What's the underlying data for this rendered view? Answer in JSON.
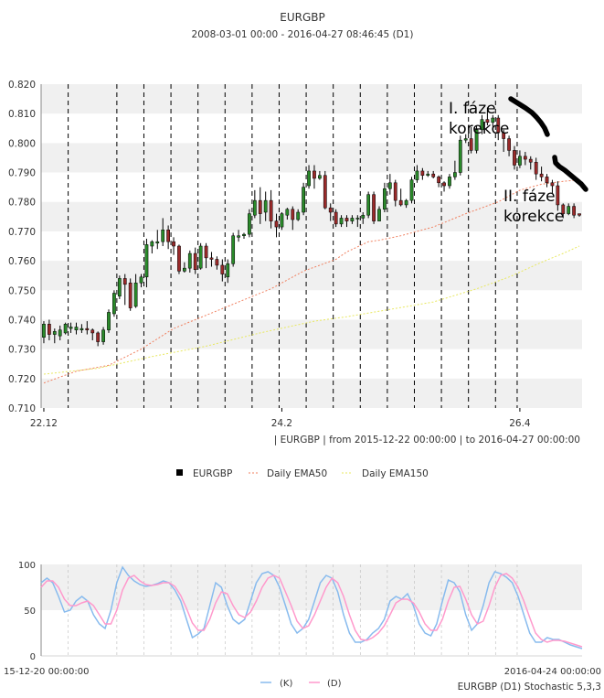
{
  "chart_data": [
    {
      "type": "candlestick",
      "title": "EURGBP",
      "subtitle": "2008-03-01 00:00 - 2016-04-27 08:46:45 (D1)",
      "range_caption": "| EURGBP | from 2015-12-22 00:00:00 | to 2016-04-27 00:00:00",
      "ylim": [
        0.71,
        0.82
      ],
      "y_ticks": [
        "0.710",
        "0.720",
        "0.730",
        "0.740",
        "0.750",
        "0.760",
        "0.770",
        "0.780",
        "0.790",
        "0.800",
        "0.810",
        "0.820"
      ],
      "x_ticks": [
        {
          "label": "22.12",
          "index": 0
        },
        {
          "label": "24.2",
          "index": 44
        },
        {
          "label": "26.4",
          "index": 88
        }
      ],
      "week_boundaries": [
        4,
        13,
        18,
        23,
        28,
        33,
        38,
        43,
        48,
        53,
        58,
        63,
        68,
        73,
        78,
        83,
        87
      ],
      "legend": [
        {
          "name": "EURGBP",
          "color": "#000000"
        },
        {
          "name": "Daily EMA50",
          "color": "#f08060"
        },
        {
          "name": "Daily EMA150",
          "color": "#eeee66"
        }
      ],
      "candles": [
        [
          0.734,
          0.7385,
          0.732,
          0.7395
        ],
        [
          0.7385,
          0.735,
          0.733,
          0.74
        ],
        [
          0.735,
          0.736,
          0.732,
          0.737
        ],
        [
          0.7345,
          0.7365,
          0.733,
          0.738
        ],
        [
          0.7355,
          0.7385,
          0.735,
          0.739
        ],
        [
          0.737,
          0.7375,
          0.7355,
          0.739
        ],
        [
          0.7365,
          0.7375,
          0.735,
          0.739
        ],
        [
          0.7365,
          0.737,
          0.7355,
          0.7385
        ],
        [
          0.737,
          0.7365,
          0.735,
          0.7395
        ],
        [
          0.7365,
          0.7355,
          0.733,
          0.737
        ],
        [
          0.7355,
          0.7325,
          0.731,
          0.736
        ],
        [
          0.7325,
          0.7365,
          0.7315,
          0.7375
        ],
        [
          0.7365,
          0.7425,
          0.7355,
          0.7435
        ],
        [
          0.742,
          0.749,
          0.741,
          0.75
        ],
        [
          0.748,
          0.754,
          0.747,
          0.755
        ],
        [
          0.754,
          0.752,
          0.745,
          0.7555
        ],
        [
          0.7525,
          0.744,
          0.743,
          0.754
        ],
        [
          0.7445,
          0.7525,
          0.744,
          0.7555
        ],
        [
          0.7525,
          0.7545,
          0.751,
          0.7555
        ],
        [
          0.7545,
          0.7655,
          0.751,
          0.7675
        ],
        [
          0.765,
          0.7665,
          0.7625,
          0.767
        ],
        [
          0.766,
          0.7665,
          0.764,
          0.7705
        ],
        [
          0.7665,
          0.7705,
          0.765,
          0.7745
        ],
        [
          0.7705,
          0.7665,
          0.764,
          0.772
        ],
        [
          0.7665,
          0.765,
          0.762,
          0.768
        ],
        [
          0.765,
          0.7565,
          0.7555,
          0.7655
        ],
        [
          0.7565,
          0.7575,
          0.756,
          0.7595
        ],
        [
          0.7575,
          0.7625,
          0.756,
          0.7635
        ],
        [
          0.7625,
          0.757,
          0.7555,
          0.7645
        ],
        [
          0.7575,
          0.765,
          0.757,
          0.766
        ],
        [
          0.765,
          0.761,
          0.7575,
          0.766
        ],
        [
          0.761,
          0.7605,
          0.758,
          0.763
        ],
        [
          0.7605,
          0.7585,
          0.757,
          0.7615
        ],
        [
          0.7585,
          0.7555,
          0.753,
          0.7605
        ],
        [
          0.7545,
          0.759,
          0.7525,
          0.7605
        ],
        [
          0.759,
          0.7685,
          0.758,
          0.7695
        ],
        [
          0.768,
          0.7685,
          0.7665,
          0.7705
        ],
        [
          0.7685,
          0.769,
          0.7675,
          0.7695
        ],
        [
          0.769,
          0.776,
          0.768,
          0.7775
        ],
        [
          0.7755,
          0.7805,
          0.7745,
          0.784
        ],
        [
          0.7805,
          0.776,
          0.7725,
          0.785
        ],
        [
          0.7765,
          0.7805,
          0.7735,
          0.7835
        ],
        [
          0.7805,
          0.7735,
          0.771,
          0.784
        ],
        [
          0.7735,
          0.7715,
          0.768,
          0.776
        ],
        [
          0.7715,
          0.776,
          0.7705,
          0.7765
        ],
        [
          0.7755,
          0.7775,
          0.774,
          0.778
        ],
        [
          0.7775,
          0.774,
          0.7705,
          0.7785
        ],
        [
          0.774,
          0.7765,
          0.7735,
          0.7775
        ],
        [
          0.7765,
          0.785,
          0.7755,
          0.7865
        ],
        [
          0.7855,
          0.7905,
          0.7845,
          0.7925
        ],
        [
          0.7905,
          0.788,
          0.7845,
          0.7925
        ],
        [
          0.788,
          0.789,
          0.7875,
          0.7905
        ],
        [
          0.789,
          0.778,
          0.7775,
          0.7905
        ],
        [
          0.778,
          0.7765,
          0.7735,
          0.7795
        ],
        [
          0.7765,
          0.7725,
          0.7715,
          0.7775
        ],
        [
          0.7725,
          0.7745,
          0.7715,
          0.7755
        ],
        [
          0.7745,
          0.7735,
          0.7715,
          0.7755
        ],
        [
          0.7735,
          0.7745,
          0.7725,
          0.7755
        ],
        [
          0.7745,
          0.7745,
          0.7715,
          0.7755
        ],
        [
          0.7745,
          0.7755,
          0.7725,
          0.7765
        ],
        [
          0.7755,
          0.7825,
          0.7745,
          0.7835
        ],
        [
          0.7825,
          0.7735,
          0.7725,
          0.7835
        ],
        [
          0.7735,
          0.7775,
          0.7735,
          0.7785
        ],
        [
          0.7775,
          0.7845,
          0.7765,
          0.7865
        ],
        [
          0.7845,
          0.7865,
          0.7825,
          0.7895
        ],
        [
          0.7865,
          0.7805,
          0.7785,
          0.7875
        ],
        [
          0.7805,
          0.779,
          0.7785,
          0.7845
        ],
        [
          0.779,
          0.7805,
          0.778,
          0.781
        ],
        [
          0.7805,
          0.7875,
          0.7795,
          0.7885
        ],
        [
          0.7875,
          0.7905,
          0.7865,
          0.7925
        ],
        [
          0.7905,
          0.789,
          0.7875,
          0.7915
        ],
        [
          0.789,
          0.7895,
          0.7885,
          0.7905
        ],
        [
          0.7895,
          0.7885,
          0.788,
          0.7905
        ],
        [
          0.7885,
          0.7865,
          0.785,
          0.789
        ],
        [
          0.7865,
          0.7855,
          0.7835,
          0.787
        ],
        [
          0.7855,
          0.7885,
          0.7845,
          0.7895
        ],
        [
          0.7885,
          0.79,
          0.7875,
          0.794
        ],
        [
          0.79,
          0.801,
          0.789,
          0.8025
        ],
        [
          0.801,
          0.8015,
          0.8,
          0.803
        ],
        [
          0.8015,
          0.7975,
          0.7965,
          0.8055
        ],
        [
          0.7975,
          0.8045,
          0.7965,
          0.806
        ],
        [
          0.8045,
          0.808,
          0.803,
          0.8095
        ],
        [
          0.808,
          0.807,
          0.806,
          0.812
        ],
        [
          0.807,
          0.8085,
          0.8055,
          0.8095
        ],
        [
          0.8085,
          0.8035,
          0.801,
          0.8095
        ],
        [
          0.8035,
          0.8015,
          0.797,
          0.8045
        ],
        [
          0.8015,
          0.7975,
          0.7955,
          0.8025
        ],
        [
          0.7975,
          0.7925,
          0.791,
          0.799
        ],
        [
          0.7925,
          0.7955,
          0.7915,
          0.7975
        ],
        [
          0.7955,
          0.7945,
          0.7925,
          0.797
        ],
        [
          0.7945,
          0.7935,
          0.791,
          0.7955
        ],
        [
          0.7935,
          0.7895,
          0.7875,
          0.795
        ],
        [
          0.7895,
          0.7885,
          0.787,
          0.792
        ],
        [
          0.7885,
          0.7865,
          0.785,
          0.7895
        ],
        [
          0.7865,
          0.7855,
          0.783,
          0.7875
        ],
        [
          0.7855,
          0.779,
          0.777,
          0.787
        ],
        [
          0.779,
          0.776,
          0.7745,
          0.7795
        ],
        [
          0.776,
          0.7785,
          0.7755,
          0.7795
        ],
        [
          0.7785,
          0.7755,
          0.7745,
          0.7795
        ],
        [
          0.776,
          0.7755,
          0.775,
          0.776
        ]
      ],
      "ema50": [
        [
          0,
          0.7185
        ],
        [
          6,
          0.7225
        ],
        [
          12,
          0.7245
        ],
        [
          18,
          0.73
        ],
        [
          24,
          0.737
        ],
        [
          30,
          0.7415
        ],
        [
          36,
          0.746
        ],
        [
          42,
          0.7505
        ],
        [
          48,
          0.7565
        ],
        [
          54,
          0.7605
        ],
        [
          56,
          0.763
        ],
        [
          60,
          0.7665
        ],
        [
          62,
          0.767
        ],
        [
          66,
          0.7685
        ],
        [
          72,
          0.7715
        ],
        [
          78,
          0.776
        ],
        [
          84,
          0.78
        ],
        [
          88,
          0.784
        ],
        [
          92,
          0.786
        ],
        [
          96,
          0.787
        ],
        [
          99,
          0.7875
        ]
      ],
      "ema150": [
        [
          0,
          0.7215
        ],
        [
          10,
          0.7235
        ],
        [
          20,
          0.7275
        ],
        [
          30,
          0.731
        ],
        [
          40,
          0.7355
        ],
        [
          50,
          0.7395
        ],
        [
          56,
          0.741
        ],
        [
          64,
          0.7435
        ],
        [
          72,
          0.746
        ],
        [
          80,
          0.7505
        ],
        [
          86,
          0.7545
        ],
        [
          92,
          0.7595
        ],
        [
          96,
          0.7625
        ],
        [
          99,
          0.765
        ]
      ],
      "annotations": [
        "I. fáze\nkorekce",
        "II. fáze\nkorekce"
      ]
    },
    {
      "type": "line",
      "title": "EURGBP (D1) Stochastic 5,3,3",
      "ylim": [
        0,
        100
      ],
      "y_ticks": [
        "0",
        "50",
        "100"
      ],
      "x_ticks": [
        "15-12-20 00:00:00",
        "2016-04-24 00:00:00"
      ],
      "week_boundaries": [
        4,
        13,
        18,
        23,
        28,
        33,
        38,
        43,
        48,
        53,
        58,
        63,
        68,
        73,
        78,
        83,
        87
      ],
      "series": [
        {
          "name": "(K)",
          "color": "#88bbee",
          "values": [
            80,
            85,
            80,
            65,
            48,
            50,
            60,
            65,
            60,
            45,
            35,
            30,
            50,
            80,
            97,
            88,
            82,
            78,
            76,
            77,
            79,
            82,
            80,
            72,
            60,
            40,
            20,
            24,
            30,
            55,
            80,
            75,
            55,
            40,
            35,
            40,
            60,
            80,
            90,
            92,
            88,
            75,
            55,
            35,
            25,
            30,
            40,
            60,
            80,
            88,
            85,
            70,
            45,
            25,
            15,
            15,
            18,
            25,
            30,
            40,
            60,
            65,
            62,
            68,
            55,
            35,
            25,
            22,
            35,
            60,
            83,
            80,
            70,
            45,
            28,
            35,
            55,
            80,
            92,
            90,
            86,
            80,
            65,
            45,
            25,
            15,
            15,
            20,
            18,
            18,
            15,
            12,
            10,
            8
          ]
        },
        {
          "name": "(D)",
          "color": "#ff99cc",
          "values": [
            75,
            82,
            82,
            75,
            62,
            55,
            55,
            58,
            60,
            55,
            45,
            35,
            35,
            50,
            72,
            85,
            88,
            82,
            78,
            77,
            78,
            80,
            80,
            76,
            66,
            52,
            36,
            28,
            28,
            40,
            58,
            70,
            68,
            55,
            45,
            42,
            48,
            60,
            75,
            85,
            88,
            85,
            70,
            55,
            38,
            30,
            33,
            45,
            60,
            75,
            85,
            80,
            65,
            45,
            28,
            18,
            17,
            20,
            25,
            33,
            45,
            58,
            62,
            62,
            58,
            48,
            35,
            28,
            28,
            40,
            60,
            75,
            76,
            62,
            45,
            35,
            38,
            55,
            75,
            88,
            90,
            85,
            75,
            60,
            42,
            25,
            18,
            15,
            17,
            17,
            16,
            14,
            12,
            10
          ]
        }
      ]
    }
  ]
}
